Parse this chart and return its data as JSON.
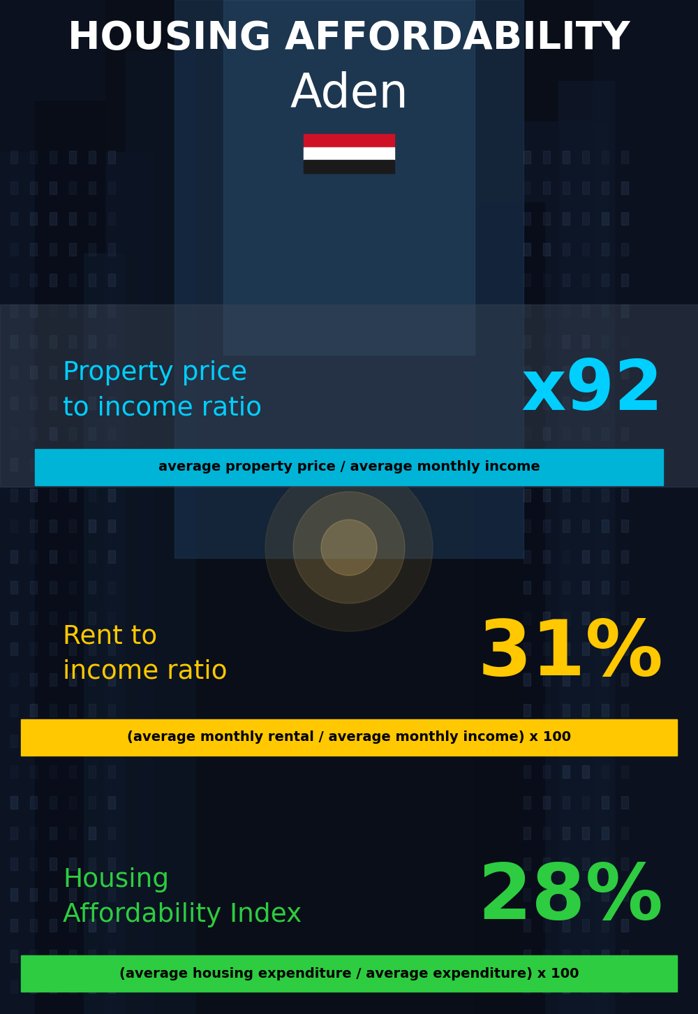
{
  "title_line1": "HOUSING AFFORDABILITY",
  "title_line2": "Aden",
  "bg_color": "#0a0e18",
  "title_color": "#ffffff",
  "city_color": "#ffffff",
  "section1_label": "Property price\nto income ratio",
  "section1_value": "x92",
  "section1_label_color": "#00cfff",
  "section1_value_color": "#00cfff",
  "section1_sublabel": "average property price / average monthly income",
  "section1_sub_bg": "#00b4d8",
  "section1_sub_color": "#000000",
  "section2_label": "Rent to\nincome ratio",
  "section2_value": "31%",
  "section2_label_color": "#ffc800",
  "section2_value_color": "#ffc800",
  "section2_sublabel": "(average monthly rental / average monthly income) x 100",
  "section2_sub_bg": "#ffc800",
  "section2_sub_color": "#000000",
  "section3_label": "Housing\nAffordability Index",
  "section3_value": "28%",
  "section3_label_color": "#2ecc40",
  "section3_value_color": "#2ecc40",
  "section3_sublabel": "(average housing expenditure / average expenditure) x 100",
  "section3_sub_bg": "#2ecc40",
  "section3_sub_color": "#000000",
  "flag_red": "#ce1126",
  "flag_white": "#ffffff",
  "flag_black": "#1a1a1a",
  "fig_width": 10.0,
  "fig_height": 14.52,
  "dpi": 100
}
